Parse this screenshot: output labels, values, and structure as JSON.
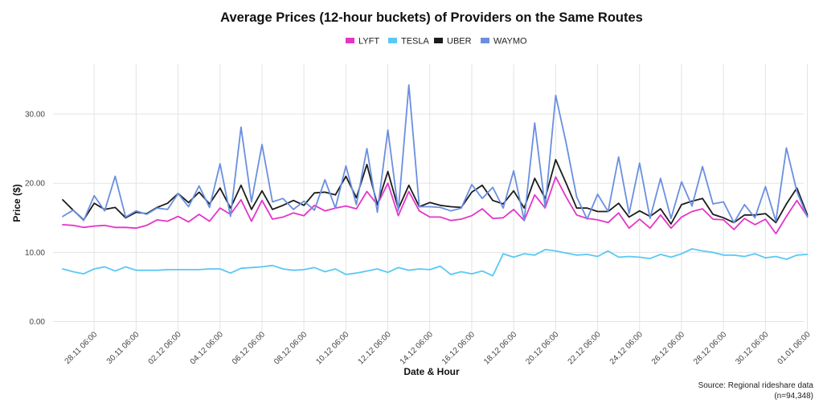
{
  "chart_data": {
    "type": "line",
    "title": "Average Prices (12-hour buckets) of Providers on the Same Routes",
    "xlabel": "Date & Hour",
    "ylabel": "Price ($)",
    "ylim": [
      -1.5,
      36.5
    ],
    "y_ticks": [
      "0.00",
      "10.00",
      "20.00",
      "30.00"
    ],
    "x_tick_labels": [
      "28.11 06:00",
      "30.11 06:00",
      "02.12 06:00",
      "04.12 06:00",
      "06.12 06:00",
      "08.12 06:00",
      "10.12 06:00",
      "12.12 06:00",
      "14.12 06:00",
      "16.12 06:00",
      "18.12 06:00",
      "20.12 06:00",
      "22.12 06:00",
      "24.12 06:00",
      "26.12 06:00",
      "28.12 06:00",
      "30.12 06:00",
      "01.01 06:00"
    ],
    "x_start": "26.11 18:00",
    "x_interval": "12 hours",
    "grid": true,
    "legend_position": "top-center",
    "series": [
      {
        "name": "LYFT",
        "color": "#e535c8",
        "values": [
          14.0,
          13.9,
          13.6,
          13.8,
          13.9,
          13.6,
          13.6,
          13.5,
          13.9,
          14.7,
          14.5,
          15.2,
          14.4,
          15.5,
          14.5,
          16.4,
          15.5,
          17.6,
          14.5,
          17.5,
          14.8,
          15.1,
          15.7,
          15.3,
          16.8,
          16.0,
          16.4,
          16.7,
          16.3,
          18.8,
          16.9,
          20.0,
          15.3,
          18.8,
          16.0,
          15.1,
          15.1,
          14.6,
          14.8,
          15.3,
          16.3,
          14.9,
          15.0,
          16.2,
          14.6,
          18.3,
          16.4,
          20.9,
          18.0,
          15.4,
          14.9,
          14.7,
          14.3,
          15.7,
          13.5,
          14.8,
          13.5,
          15.4,
          13.5,
          15.1,
          15.9,
          16.3,
          14.8,
          14.7,
          13.3,
          14.9,
          14.0,
          14.8,
          12.7,
          15.2,
          17.5,
          15.2
        ]
      },
      {
        "name": "TESLA",
        "color": "#5ac8f5",
        "values": [
          7.6,
          7.2,
          6.9,
          7.6,
          7.9,
          7.3,
          7.9,
          7.4,
          7.4,
          7.4,
          7.5,
          7.5,
          7.5,
          7.5,
          7.6,
          7.6,
          7.0,
          7.7,
          7.8,
          7.9,
          8.1,
          7.6,
          7.4,
          7.5,
          7.8,
          7.2,
          7.6,
          6.8,
          7.0,
          7.3,
          7.6,
          7.1,
          7.8,
          7.4,
          7.6,
          7.5,
          8.0,
          6.8,
          7.2,
          6.9,
          7.3,
          6.6,
          9.8,
          9.3,
          9.8,
          9.6,
          10.4,
          10.2,
          9.9,
          9.6,
          9.7,
          9.4,
          10.2,
          9.3,
          9.4,
          9.3,
          9.1,
          9.7,
          9.3,
          9.8,
          10.5,
          10.2,
          10.0,
          9.6,
          9.6,
          9.4,
          9.8,
          9.2,
          9.4,
          9.0,
          9.6,
          9.7
        ]
      },
      {
        "name": "UBER",
        "color": "#1c1c1c",
        "values": [
          17.6,
          16.1,
          14.7,
          17.1,
          16.2,
          16.5,
          15.0,
          15.8,
          15.6,
          16.5,
          17.1,
          18.5,
          17.2,
          18.7,
          17.0,
          19.3,
          16.4,
          19.7,
          16.2,
          18.9,
          16.2,
          16.8,
          17.5,
          16.8,
          18.6,
          18.7,
          18.3,
          21.0,
          17.9,
          22.7,
          16.9,
          21.7,
          16.3,
          19.7,
          16.6,
          17.2,
          16.8,
          16.6,
          16.5,
          18.7,
          19.7,
          17.5,
          17.0,
          18.9,
          16.4,
          20.7,
          17.8,
          23.4,
          20.0,
          16.4,
          16.4,
          15.9,
          15.9,
          17.1,
          15.1,
          16.0,
          15.2,
          16.3,
          14.1,
          16.9,
          17.4,
          17.8,
          15.5,
          15.0,
          14.3,
          15.4,
          15.4,
          15.6,
          14.3,
          17.0,
          19.3,
          15.4
        ]
      },
      {
        "name": "WAYMO",
        "color": "#6a8fe0",
        "values": [
          15.2,
          16.1,
          14.6,
          18.2,
          16.0,
          21.0,
          15.1,
          16.0,
          15.5,
          16.4,
          16.2,
          18.5,
          16.6,
          19.6,
          16.5,
          22.8,
          15.2,
          28.1,
          17.3,
          25.6,
          17.3,
          17.8,
          16.2,
          17.4,
          16.1,
          20.5,
          16.4,
          22.5,
          16.9,
          25.0,
          15.8,
          27.7,
          16.0,
          34.2,
          16.6,
          16.6,
          16.5,
          16.0,
          16.4,
          19.8,
          17.8,
          19.4,
          16.4,
          21.8,
          14.6,
          28.7,
          16.5,
          32.7,
          25.8,
          18.0,
          14.8,
          18.4,
          15.9,
          23.8,
          15.6,
          22.9,
          14.9,
          20.7,
          14.9,
          20.2,
          16.7,
          22.4,
          17.0,
          17.3,
          14.3,
          16.9,
          15.0,
          19.5,
          14.5,
          25.1,
          18.8,
          15.1
        ]
      }
    ]
  },
  "caption": {
    "line1": "Source: Regional rideshare data",
    "line2": "(n=94,348)"
  }
}
